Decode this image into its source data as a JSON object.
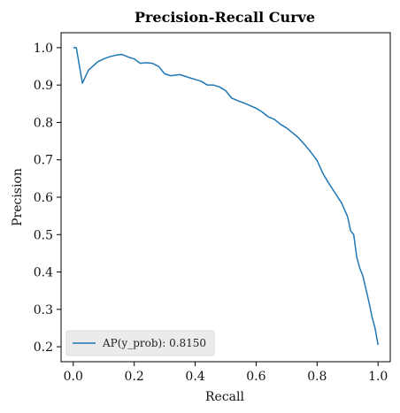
{
  "chart_data": {
    "type": "line",
    "title": "Precision-Recall Curve",
    "xlabel": "Recall",
    "ylabel": "Precision",
    "xlim": [
      -0.04,
      1.04
    ],
    "ylim": [
      0.16,
      1.04
    ],
    "xticks": [
      0.0,
      0.2,
      0.4,
      0.6,
      0.8,
      1.0
    ],
    "yticks": [
      0.2,
      0.3,
      0.4,
      0.5,
      0.6,
      0.7,
      0.8,
      0.9,
      1.0
    ],
    "xtick_labels": [
      "0.0",
      "0.2",
      "0.4",
      "0.6",
      "0.8",
      "1.0"
    ],
    "ytick_labels": [
      "0.2",
      "0.3",
      "0.4",
      "0.5",
      "0.6",
      "0.7",
      "0.8",
      "0.9",
      "1.0"
    ],
    "grid": false,
    "legend_position": "lower-left",
    "series": [
      {
        "name": "AP(y_prob): 0.8150",
        "color": "#1f77b4",
        "x": [
          0.0,
          0.01,
          0.03,
          0.05,
          0.08,
          0.1,
          0.12,
          0.14,
          0.16,
          0.18,
          0.2,
          0.22,
          0.24,
          0.26,
          0.28,
          0.3,
          0.32,
          0.35,
          0.38,
          0.4,
          0.42,
          0.44,
          0.46,
          0.48,
          0.5,
          0.52,
          0.54,
          0.56,
          0.58,
          0.6,
          0.62,
          0.64,
          0.66,
          0.68,
          0.7,
          0.72,
          0.74,
          0.76,
          0.78,
          0.8,
          0.81,
          0.82,
          0.84,
          0.86,
          0.88,
          0.9,
          0.91,
          0.92,
          0.93,
          0.94,
          0.95,
          0.96,
          0.97,
          0.98,
          0.99,
          1.0
        ],
        "y": [
          1.0,
          1.0,
          0.905,
          0.94,
          0.962,
          0.97,
          0.976,
          0.98,
          0.982,
          0.975,
          0.97,
          0.958,
          0.96,
          0.958,
          0.95,
          0.93,
          0.925,
          0.928,
          0.92,
          0.915,
          0.91,
          0.9,
          0.9,
          0.895,
          0.885,
          0.865,
          0.858,
          0.852,
          0.845,
          0.838,
          0.828,
          0.815,
          0.808,
          0.795,
          0.785,
          0.772,
          0.758,
          0.74,
          0.72,
          0.698,
          0.68,
          0.662,
          0.635,
          0.61,
          0.585,
          0.548,
          0.51,
          0.5,
          0.44,
          0.41,
          0.39,
          0.355,
          0.32,
          0.28,
          0.25,
          0.205
        ]
      }
    ]
  }
}
